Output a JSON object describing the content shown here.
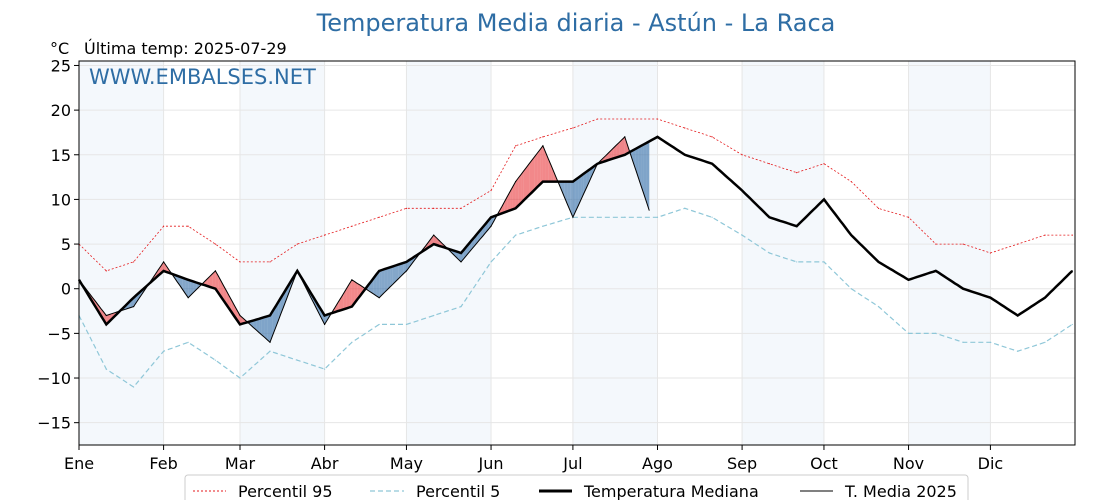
{
  "chart_data": {
    "type": "line",
    "title": "Temperatura Media diaria - Astún - La Raca",
    "unit": "°C",
    "subtitle": "Última temp: 2025-07-29",
    "watermark": "WWW.EMBALSES.NET",
    "ylim": [
      -17.5,
      25.5
    ],
    "yticks": [
      25,
      20,
      15,
      10,
      5,
      0,
      -5,
      -10,
      -15
    ],
    "ytick_labels": [
      "25",
      "20",
      "15",
      "10",
      "5",
      "0",
      "−5",
      "−10",
      "−15"
    ],
    "months": [
      "Ene",
      "Feb",
      "Mar",
      "Abr",
      "May",
      "Jun",
      "Jul",
      "Ago",
      "Sep",
      "Oct",
      "Nov",
      "Dic"
    ],
    "month_start_day": [
      0,
      31,
      59,
      90,
      120,
      151,
      181,
      212,
      243,
      273,
      304,
      334
    ],
    "days_in_year": 365,
    "grid": true,
    "legend_position": "bottom",
    "colors": {
      "p95": "#e41a1c",
      "p5": "#8fc7d8",
      "median": "#000000",
      "year": "#000000",
      "above": "#e8262a",
      "below": "#1f5f9e",
      "band": "#f4f8fc"
    },
    "series": [
      {
        "name": "Percentil 95",
        "key": "p95",
        "x": [
          0,
          10,
          20,
          31,
          40,
          50,
          59,
          70,
          80,
          90,
          100,
          110,
          120,
          130,
          140,
          151,
          160,
          170,
          181,
          190,
          200,
          212,
          222,
          232,
          243,
          253,
          263,
          273,
          283,
          293,
          304,
          314,
          324,
          334,
          344,
          354,
          364
        ],
        "values": [
          5,
          2,
          3,
          7,
          7,
          5,
          3,
          3,
          5,
          6,
          7,
          8,
          9,
          9,
          9,
          11,
          16,
          17,
          18,
          19,
          19,
          19,
          18,
          17,
          15,
          14,
          13,
          14,
          12,
          9,
          8,
          5,
          5,
          4,
          5,
          6,
          6
        ]
      },
      {
        "name": "Percentil 5",
        "key": "p5",
        "x": [
          0,
          10,
          20,
          31,
          40,
          50,
          59,
          70,
          80,
          90,
          100,
          110,
          120,
          130,
          140,
          151,
          160,
          170,
          181,
          190,
          200,
          212,
          222,
          232,
          243,
          253,
          263,
          273,
          283,
          293,
          304,
          314,
          324,
          334,
          344,
          354,
          364
        ],
        "values": [
          -3,
          -9,
          -11,
          -7,
          -6,
          -8,
          -10,
          -7,
          -8,
          -9,
          -6,
          -4,
          -4,
          -3,
          -2,
          3,
          6,
          7,
          8,
          8,
          8,
          8,
          9,
          8,
          6,
          4,
          3,
          3,
          0,
          -2,
          -5,
          -5,
          -6,
          -6,
          -7,
          -6,
          -4
        ]
      },
      {
        "name": "Temperatura Mediana",
        "key": "median",
        "x": [
          0,
          10,
          20,
          31,
          40,
          50,
          59,
          70,
          80,
          90,
          100,
          110,
          120,
          130,
          140,
          151,
          160,
          170,
          181,
          190,
          200,
          212,
          222,
          232,
          243,
          253,
          263,
          273,
          283,
          293,
          304,
          314,
          324,
          334,
          344,
          354,
          364
        ],
        "values": [
          1,
          -4,
          -1,
          2,
          1,
          0,
          -4,
          -3,
          2,
          -3,
          -2,
          2,
          3,
          5,
          4,
          8,
          9,
          12,
          12,
          14,
          15,
          17,
          15,
          14,
          11,
          8,
          7,
          10,
          6,
          3,
          1,
          2,
          0,
          -1,
          -3,
          -1,
          2
        ]
      },
      {
        "name": "T. Media 2025",
        "key": "year",
        "x": [
          0,
          10,
          20,
          31,
          40,
          50,
          59,
          70,
          80,
          90,
          100,
          110,
          120,
          130,
          140,
          151,
          160,
          170,
          181,
          190,
          200,
          212,
          222,
          232,
          243,
          253,
          263,
          273,
          283,
          293,
          304,
          314,
          324,
          334,
          344,
          354,
          364
        ],
        "values": [
          1,
          -3,
          -2,
          3,
          -1,
          2,
          -3,
          -6,
          2,
          -4,
          1,
          -1,
          2,
          6,
          3,
          7,
          12,
          16,
          8,
          14,
          17,
          6,
          17,
          14,
          10,
          8,
          7,
          10,
          6,
          4,
          -1,
          1,
          0,
          0,
          -3,
          -2,
          2
        ]
      }
    ]
  }
}
